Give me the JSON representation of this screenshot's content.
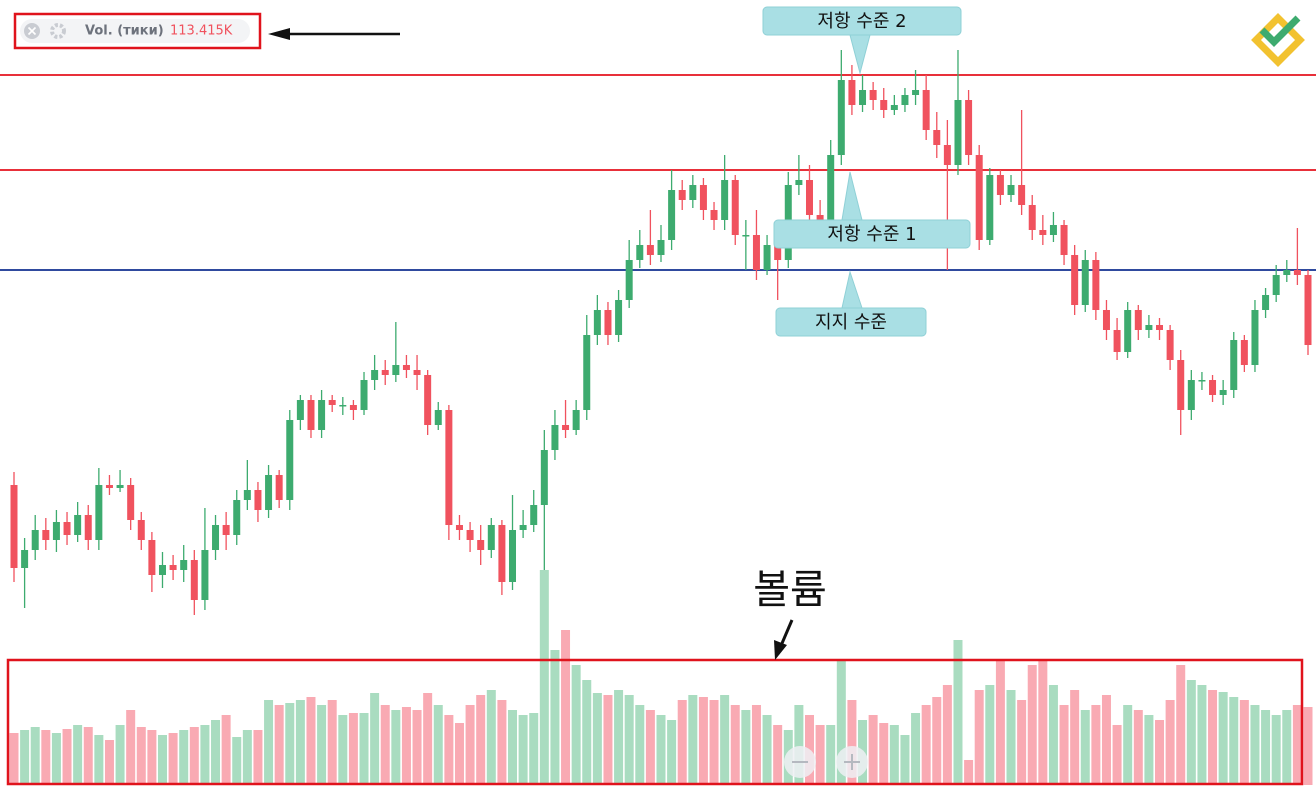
{
  "chart_data": {
    "type": "candlestick",
    "legend_name": "Vol. (тики)",
    "legend_value": "113.415K",
    "volume_label": "볼륨",
    "ylim": [
      0,
      700
    ],
    "volume_ylim": [
      0,
      230
    ],
    "up_color": "#3dab6f",
    "down_color": "#f0525e",
    "volume_up_color": "#a9dcc0",
    "volume_down_color": "#f9aab3",
    "levels": [
      {
        "label": "저항 수준 2",
        "value": 625,
        "color": "#e8303a"
      },
      {
        "label": "저항 수준 1",
        "value": 530,
        "color": "#e8303a"
      },
      {
        "label": "지지 수준",
        "value": 430,
        "color": "#2f4a9e"
      }
    ],
    "open": [
      215,
      132,
      150,
      170,
      160,
      178,
      165,
      185,
      160,
      215,
      212,
      215,
      180,
      160,
      125,
      135,
      130,
      140,
      100,
      150,
      175,
      165,
      200,
      210,
      190,
      225,
      200,
      280,
      300,
      270,
      300,
      295,
      295,
      290,
      320,
      330,
      325,
      335,
      330,
      325,
      275,
      290,
      175,
      170,
      160,
      150,
      175,
      118,
      170,
      175,
      195,
      250,
      275,
      270,
      290,
      365,
      390,
      365,
      400,
      440,
      455,
      445,
      460,
      510,
      500,
      515,
      490,
      480,
      520,
      465,
      465,
      430,
      455,
      440,
      515,
      520,
      485,
      475,
      545,
      620,
      595,
      610,
      600,
      590,
      595,
      605,
      610,
      570,
      555,
      535,
      600,
      545,
      460,
      525,
      505,
      515,
      495,
      470,
      465,
      475,
      445,
      395,
      440,
      390,
      370,
      348,
      390,
      370,
      375,
      370,
      340,
      290,
      320,
      320,
      305,
      310,
      360,
      335,
      390,
      405,
      425,
      430,
      425
    ],
    "high": [
      228,
      162,
      185,
      182,
      190,
      188,
      198,
      195,
      232,
      225,
      230,
      222,
      188,
      168,
      148,
      145,
      155,
      150,
      192,
      185,
      188,
      210,
      240,
      218,
      235,
      230,
      290,
      305,
      305,
      310,
      305,
      303,
      300,
      328,
      345,
      340,
      378,
      345,
      345,
      330,
      298,
      295,
      185,
      178,
      175,
      182,
      180,
      205,
      190,
      210,
      270,
      290,
      300,
      300,
      385,
      405,
      398,
      410,
      460,
      470,
      490,
      475,
      530,
      520,
      525,
      522,
      498,
      545,
      525,
      480,
      490,
      465,
      470,
      528,
      545,
      535,
      500,
      560,
      650,
      635,
      625,
      618,
      612,
      605,
      612,
      630,
      625,
      588,
      580,
      650,
      610,
      555,
      532,
      530,
      525,
      590,
      505,
      485,
      488,
      480,
      455,
      450,
      448,
      400,
      382,
      398,
      395,
      385,
      382,
      375,
      350,
      330,
      328,
      325,
      320,
      368,
      365,
      400,
      412,
      435,
      440,
      472,
      430
    ],
    "low": [
      118,
      92,
      140,
      150,
      148,
      155,
      158,
      150,
      150,
      205,
      208,
      170,
      150,
      108,
      112,
      120,
      118,
      85,
      90,
      140,
      150,
      155,
      190,
      178,
      182,
      192,
      190,
      270,
      262,
      262,
      288,
      285,
      280,
      285,
      310,
      315,
      318,
      322,
      310,
      265,
      270,
      160,
      160,
      148,
      135,
      142,
      105,
      110,
      162,
      168,
      130,
      240,
      262,
      265,
      280,
      355,
      355,
      358,
      392,
      432,
      435,
      438,
      450,
      490,
      492,
      480,
      470,
      470,
      455,
      430,
      420,
      425,
      400,
      432,
      505,
      478,
      465,
      468,
      535,
      585,
      588,
      590,
      582,
      585,
      588,
      595,
      560,
      542,
      430,
      525,
      535,
      450,
      455,
      495,
      498,
      485,
      460,
      455,
      458,
      435,
      385,
      388,
      380,
      360,
      340,
      342,
      360,
      362,
      360,
      330,
      265,
      280,
      310,
      298,
      295,
      302,
      328,
      328,
      382,
      398,
      418,
      415,
      345
    ],
    "close": [
      132,
      150,
      170,
      160,
      178,
      165,
      185,
      160,
      215,
      212,
      215,
      180,
      160,
      125,
      135,
      130,
      140,
      100,
      150,
      175,
      165,
      200,
      210,
      190,
      225,
      200,
      280,
      300,
      270,
      300,
      295,
      295,
      290,
      320,
      330,
      325,
      335,
      330,
      325,
      275,
      290,
      175,
      170,
      160,
      150,
      175,
      118,
      170,
      175,
      195,
      250,
      275,
      270,
      290,
      365,
      390,
      365,
      400,
      440,
      455,
      445,
      460,
      510,
      500,
      515,
      490,
      480,
      520,
      465,
      465,
      430,
      455,
      440,
      515,
      520,
      485,
      475,
      545,
      620,
      595,
      610,
      600,
      590,
      595,
      605,
      610,
      570,
      555,
      535,
      600,
      545,
      460,
      525,
      505,
      515,
      495,
      470,
      465,
      475,
      445,
      395,
      440,
      390,
      370,
      348,
      390,
      370,
      375,
      370,
      340,
      290,
      320,
      320,
      305,
      310,
      360,
      335,
      390,
      405,
      425,
      430,
      425,
      355
    ],
    "volume": [
      52,
      55,
      58,
      55,
      52,
      56,
      60,
      58,
      50,
      45,
      60,
      75,
      58,
      55,
      50,
      52,
      55,
      58,
      60,
      65,
      70,
      48,
      55,
      55,
      85,
      80,
      82,
      85,
      88,
      80,
      85,
      70,
      72,
      72,
      92,
      80,
      75,
      78,
      75,
      92,
      80,
      70,
      62,
      80,
      90,
      95,
      85,
      75,
      70,
      72,
      215,
      135,
      155,
      120,
      105,
      92,
      90,
      95,
      90,
      80,
      75,
      70,
      65,
      85,
      90,
      88,
      85,
      90,
      80,
      75,
      80,
      70,
      60,
      55,
      80,
      70,
      60,
      60,
      125,
      85,
      65,
      70,
      62,
      60,
      50,
      72,
      80,
      88,
      100,
      145,
      25,
      95,
      100,
      125,
      95,
      85,
      120,
      125,
      100,
      80,
      95,
      75,
      80,
      90,
      60,
      80,
      75,
      70,
      65,
      85,
      120,
      105,
      100,
      95,
      93,
      88,
      85,
      80,
      75,
      70,
      75,
      80,
      78
    ]
  }
}
